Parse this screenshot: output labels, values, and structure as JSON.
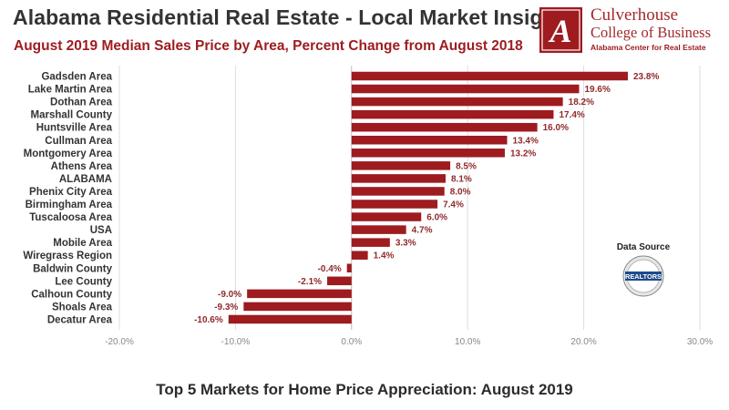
{
  "header": {
    "title": "Alabama Residential Real Estate - Local Market Insights",
    "subtitle": "August 2019 Median Sales Price by Area, Percent Change from August 2018"
  },
  "logo": {
    "letter": "A",
    "name": "Culverhouse",
    "school": "College of Business",
    "center": "Alabama Center for Real Estate"
  },
  "source": {
    "label": "Data Source",
    "badge_text": "REALTORS"
  },
  "footer": {
    "caption": "Top 5 Markets for Home Price Appreciation: August 2019"
  },
  "colors": {
    "bar": "#9e1b1f",
    "grid": "#dddddd",
    "text": "#333333"
  },
  "chart_data": {
    "type": "bar",
    "orientation": "horizontal",
    "categories": [
      "Gadsden Area",
      "Lake Martin Area",
      "Dothan Area",
      "Marshall County",
      "Huntsville Area",
      "Cullman Area",
      "Montgomery Area",
      "Athens Area",
      "ALABAMA",
      "Phenix City Area",
      "Birmingham Area",
      "Tuscaloosa Area",
      "USA",
      "Mobile Area",
      "Wiregrass Region",
      "Baldwin County",
      "Lee County",
      "Calhoun County",
      "Shoals Area",
      "Decatur Area"
    ],
    "values": [
      23.8,
      19.6,
      18.2,
      17.4,
      16.0,
      13.4,
      13.2,
      8.5,
      8.1,
      8.0,
      7.4,
      6.0,
      4.7,
      3.3,
      1.4,
      -0.4,
      -2.1,
      -9.0,
      -9.3,
      -10.6
    ],
    "value_labels": [
      "23.8%",
      "19.6%",
      "18.2%",
      "17.4%",
      "16.0%",
      "13.4%",
      "13.2%",
      "8.5%",
      "8.1%",
      "8.0%",
      "7.4%",
      "6.0%",
      "4.7%",
      "3.3%",
      "1.4%",
      "-0.4%",
      "-2.1%",
      "-9.0%",
      "-9.3%",
      "-10.6%"
    ],
    "xlim": [
      -20,
      30
    ],
    "xticks": [
      -20,
      -10,
      0,
      10,
      20,
      30
    ],
    "xtick_labels": [
      "-20.0%",
      "-10.0%",
      "0.0%",
      "10.0%",
      "20.0%",
      "30.0%"
    ],
    "grid": true,
    "legend": false
  }
}
